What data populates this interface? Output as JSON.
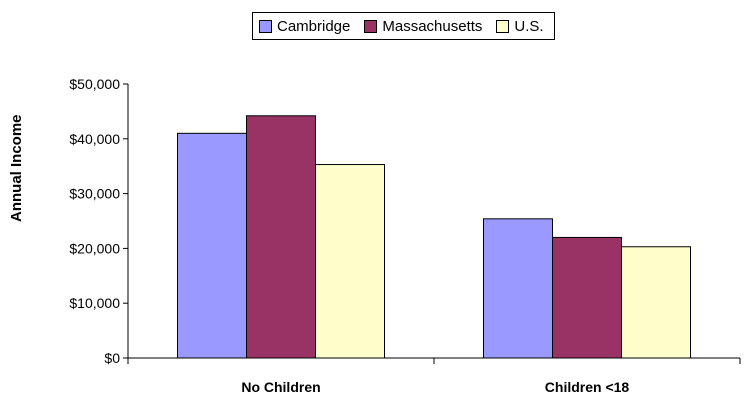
{
  "chart_data": {
    "type": "bar",
    "categories": [
      "No Children",
      "Children <18"
    ],
    "series": [
      {
        "name": "Cambridge",
        "color": "#9999ff",
        "values": [
          41000,
          25400
        ]
      },
      {
        "name": "Massachusetts",
        "color": "#993366",
        "values": [
          44200,
          22000
        ]
      },
      {
        "name": "U.S.",
        "color": "#ffffcc",
        "values": [
          35300,
          20300
        ]
      }
    ],
    "ylabel": "Annual Income",
    "ylim": [
      0,
      50000
    ],
    "yticks": [
      "$0",
      "$10,000",
      "$20,000",
      "$30,000",
      "$40,000",
      "$50,000"
    ],
    "legend_position": "top-center",
    "grid": false
  }
}
